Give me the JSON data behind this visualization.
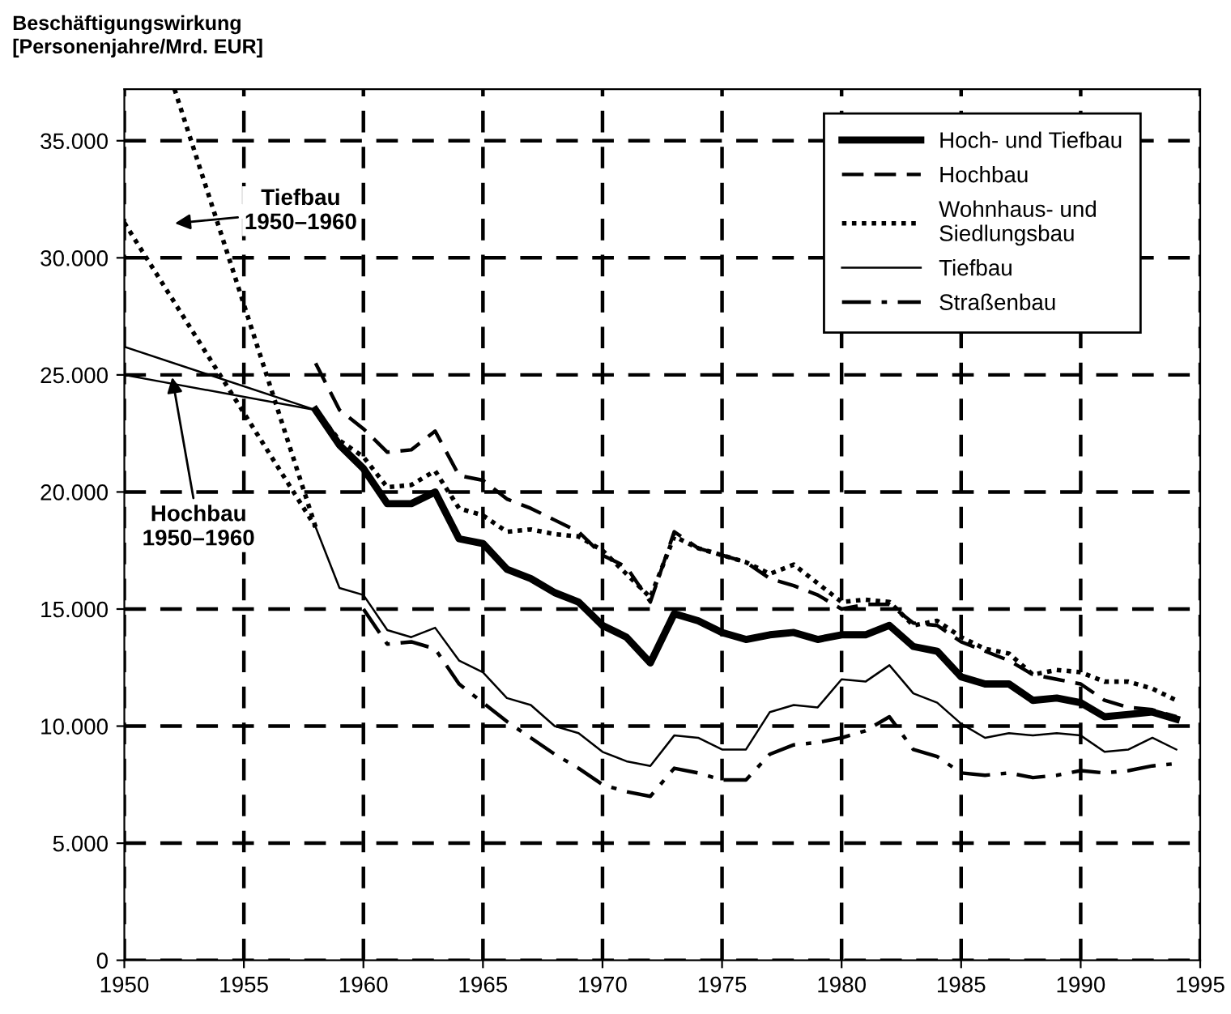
{
  "chart_data": {
    "type": "line",
    "ylabel": "Beschäftigungswirkung\n[Personenjahre/Mrd. EUR]",
    "x": [
      1958,
      1959,
      1960,
      1961,
      1962,
      1963,
      1964,
      1965,
      1966,
      1967,
      1968,
      1969,
      1970,
      1971,
      1972,
      1973,
      1974,
      1975,
      1976,
      1977,
      1978,
      1979,
      1980,
      1981,
      1982,
      1983,
      1984,
      1985,
      1986,
      1987,
      1988,
      1989,
      1990,
      1991,
      1992,
      1993,
      1994
    ],
    "series": [
      {
        "name": "Hoch- und Tiefbau",
        "color": "#000000",
        "line_style": "solid",
        "values": [
          23500,
          22000,
          21000,
          19500,
          19500,
          20000,
          18000,
          17800,
          16700,
          16300,
          15700,
          15300,
          14300,
          13800,
          12700,
          14800,
          14500,
          14000,
          13700,
          13900,
          14000,
          13700,
          13900,
          13900,
          14300,
          13400,
          13200,
          12100,
          11800,
          11800,
          11100,
          11200,
          11000,
          10400,
          10500,
          10600,
          10300
        ]
      },
      {
        "name": "Hochbau",
        "color": "#000000",
        "line_style": "dashed",
        "values": [
          25500,
          23500,
          22700,
          21700,
          21800,
          22600,
          20700,
          20500,
          19700,
          19300,
          18800,
          18300,
          17300,
          16800,
          15300,
          18300,
          17600,
          17300,
          17000,
          16300,
          16000,
          15600,
          15000,
          15200,
          15200,
          14400,
          14300,
          13600,
          13200,
          12800,
          12200,
          12000,
          11800,
          11100,
          10800,
          10700,
          10400
        ]
      },
      {
        "name": "Wohnhaus- und\nSiedlungsbau",
        "color": "#000000",
        "line_style": "dotted",
        "values": [
          23500,
          22200,
          21500,
          20200,
          20300,
          20900,
          19300,
          19000,
          18300,
          18400,
          18200,
          18100,
          17500,
          16500,
          15500,
          18100,
          17600,
          17300,
          17000,
          16500,
          16900,
          16100,
          15300,
          15400,
          15300,
          14300,
          14500,
          13800,
          13300,
          13100,
          12200,
          12400,
          12300,
          11900,
          11900,
          11600,
          11100
        ]
      },
      {
        "name": "Tiefbau",
        "color": "#000000",
        "line_style": "solid",
        "values": [
          18500,
          15900,
          15600,
          14100,
          13800,
          14200,
          12800,
          12300,
          11200,
          10900,
          10000,
          9700,
          8900,
          8500,
          8300,
          9600,
          9500,
          9000,
          9000,
          10600,
          10900,
          10800,
          12000,
          11900,
          12600,
          11400,
          11000,
          10100,
          9500,
          9700,
          9600,
          9700,
          9600,
          8900,
          9000,
          9500,
          9000
        ]
      },
      {
        "name": "Straßenbau",
        "color": "#000000",
        "line_style": "dashdot",
        "values": [
          null,
          null,
          15000,
          13500,
          13600,
          13300,
          11800,
          11000,
          10200,
          9500,
          8800,
          8200,
          7500,
          7200,
          7000,
          8200,
          8000,
          7700,
          7700,
          8800,
          9200,
          9300,
          9500,
          9800,
          10400,
          9000,
          8700,
          8000,
          7900,
          8000,
          7800,
          7900,
          8100,
          8000,
          8100,
          8300,
          8400
        ]
      },
      {
        "color": "#000000",
        "line_style": "solid",
        "x": [
          1950,
          1958
        ],
        "values": [
          26200,
          23500
        ]
      },
      {
        "color": "#000000",
        "line_style": "solid",
        "x": [
          1950,
          1958
        ],
        "values": [
          25000,
          23500
        ]
      },
      {
        "color": "#000000",
        "line_style": "dotted",
        "x": [
          1950,
          1958
        ],
        "values": [
          31500,
          18500
        ]
      },
      {
        "color": "#000000",
        "line_style": "dotted",
        "x": [
          1952.1,
          1958
        ],
        "values": [
          37200,
          18500
        ]
      }
    ],
    "xlim": [
      1950,
      1995
    ],
    "ylim": [
      0,
      37200
    ],
    "xticks": [
      1950,
      1955,
      1960,
      1965,
      1970,
      1975,
      1980,
      1985,
      1990,
      1995
    ],
    "yticks": [
      {
        "value": 0,
        "label": "0"
      },
      {
        "value": 5000,
        "label": "5.000"
      },
      {
        "value": 10000,
        "label": "10.000"
      },
      {
        "value": 15000,
        "label": "15.000"
      },
      {
        "value": 20000,
        "label": "20.000"
      },
      {
        "value": 25000,
        "label": "25.000"
      },
      {
        "value": 30000,
        "label": "30.000"
      },
      {
        "value": 35000,
        "label": "35.000"
      }
    ],
    "annotations": [
      "Tiefbau\n1950–1960",
      {
        "text": "Hochbau\n1950–1960",
        "x": 1952,
        "y": 24900
      }
    ],
    "grid": true,
    "legend": "top right"
  }
}
